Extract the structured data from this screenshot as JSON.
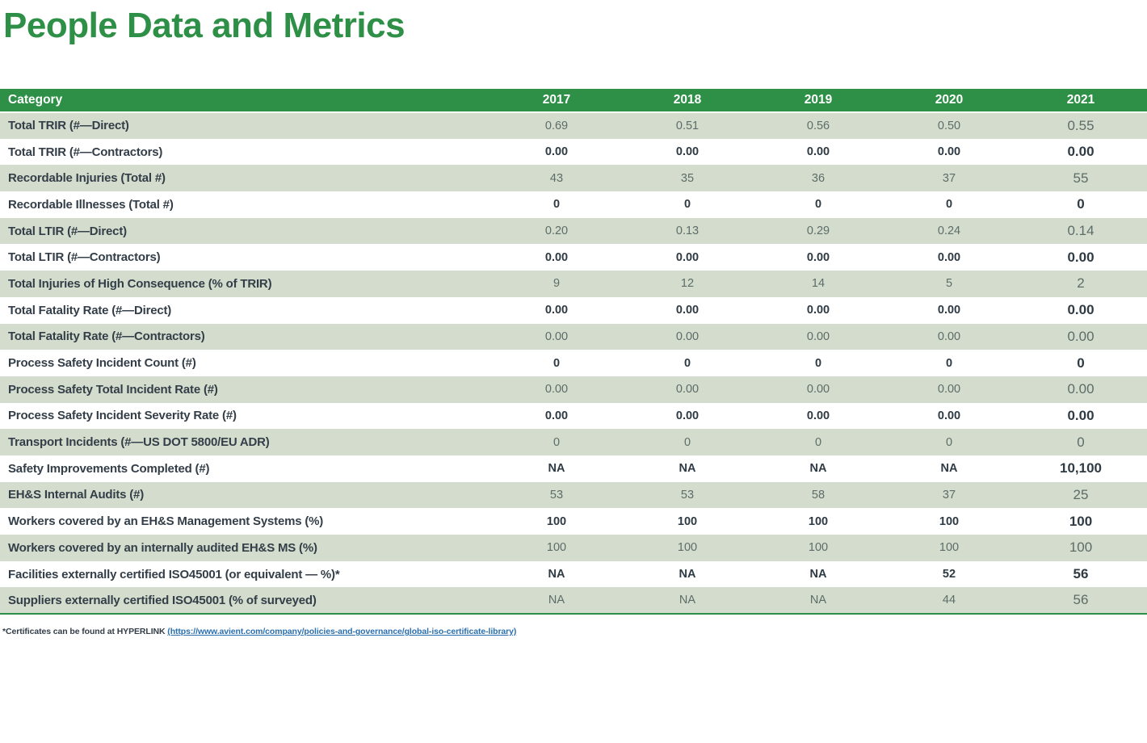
{
  "page_title": "People Data and Metrics",
  "colors": {
    "brand_green": "#2E8F47",
    "row_light_green": "#D4DDCD",
    "dark_text": "#333E48",
    "muted_value_text": "#5D6C68",
    "link_blue": "#2B6FAC"
  },
  "table": {
    "header": {
      "category": "Category",
      "years": [
        "2017",
        "2018",
        "2019",
        "2020",
        "2021"
      ]
    },
    "rows": [
      {
        "category": "Total TRIR (#—Direct)",
        "values": [
          "0.69",
          "0.51",
          "0.56",
          "0.50",
          "0.55"
        ]
      },
      {
        "category": "Total TRIR (#—Contractors)",
        "values": [
          "0.00",
          "0.00",
          "0.00",
          "0.00",
          "0.00"
        ]
      },
      {
        "category": "Recordable Injuries (Total #)",
        "values": [
          "43",
          "35",
          "36",
          "37",
          "55"
        ]
      },
      {
        "category": "Recordable Illnesses (Total #)",
        "values": [
          "0",
          "0",
          "0",
          "0",
          "0"
        ]
      },
      {
        "category": "Total LTIR (#—Direct)",
        "values": [
          "0.20",
          "0.13",
          "0.29",
          "0.24",
          "0.14"
        ]
      },
      {
        "category": "Total LTIR (#—Contractors)",
        "values": [
          "0.00",
          "0.00",
          "0.00",
          "0.00",
          "0.00"
        ]
      },
      {
        "category": "Total Injuries of High Consequence (% of TRIR)",
        "values": [
          "9",
          "12",
          "14",
          "5",
          "2"
        ]
      },
      {
        "category": "Total Fatality Rate (#—Direct)",
        "values": [
          "0.00",
          "0.00",
          "0.00",
          "0.00",
          "0.00"
        ]
      },
      {
        "category": "Total Fatality Rate (#—Contractors)",
        "values": [
          "0.00",
          "0.00",
          "0.00",
          "0.00",
          "0.00"
        ]
      },
      {
        "category": "Process Safety Incident Count (#)",
        "values": [
          "0",
          "0",
          "0",
          "0",
          "0"
        ]
      },
      {
        "category": "Process Safety Total Incident Rate (#)",
        "values": [
          "0.00",
          "0.00",
          "0.00",
          "0.00",
          "0.00"
        ]
      },
      {
        "category": "Process Safety Incident Severity Rate (#)",
        "values": [
          "0.00",
          "0.00",
          "0.00",
          "0.00",
          "0.00"
        ]
      },
      {
        "category": "Transport Incidents (#—US DOT 5800/EU ADR)",
        "values": [
          "0",
          "0",
          "0",
          "0",
          "0"
        ]
      },
      {
        "category": "Safety Improvements Completed (#)",
        "values": [
          "NA",
          "NA",
          "NA",
          "NA",
          "10,100"
        ]
      },
      {
        "category": "EH&S Internal Audits (#)",
        "values": [
          "53",
          "53",
          "58",
          "37",
          "25"
        ]
      },
      {
        "category": "Workers covered by an EH&S Management Systems (%)",
        "values": [
          "100",
          "100",
          "100",
          "100",
          "100"
        ]
      },
      {
        "category": "Workers covered by an internally audited EH&S MS (%)",
        "values": [
          "100",
          "100",
          "100",
          "100",
          "100"
        ]
      },
      {
        "category": "Facilities externally certified ISO45001 (or equivalent — %)*",
        "values": [
          "NA",
          "NA",
          "NA",
          "52",
          "56"
        ]
      },
      {
        "category": "Suppliers externally certified ISO45001 (% of surveyed)",
        "values": [
          "NA",
          "NA",
          "NA",
          "44",
          "56"
        ]
      }
    ]
  },
  "footnote": {
    "prefix": "*Certificates can be found at HYPERLINK  ",
    "link_text": "(https://www.avient.com/company/policies-and-governance/global-iso-certificate-library)",
    "link_url": "https://www.avient.com/company/policies-and-governance/global-iso-certificate-library"
  }
}
